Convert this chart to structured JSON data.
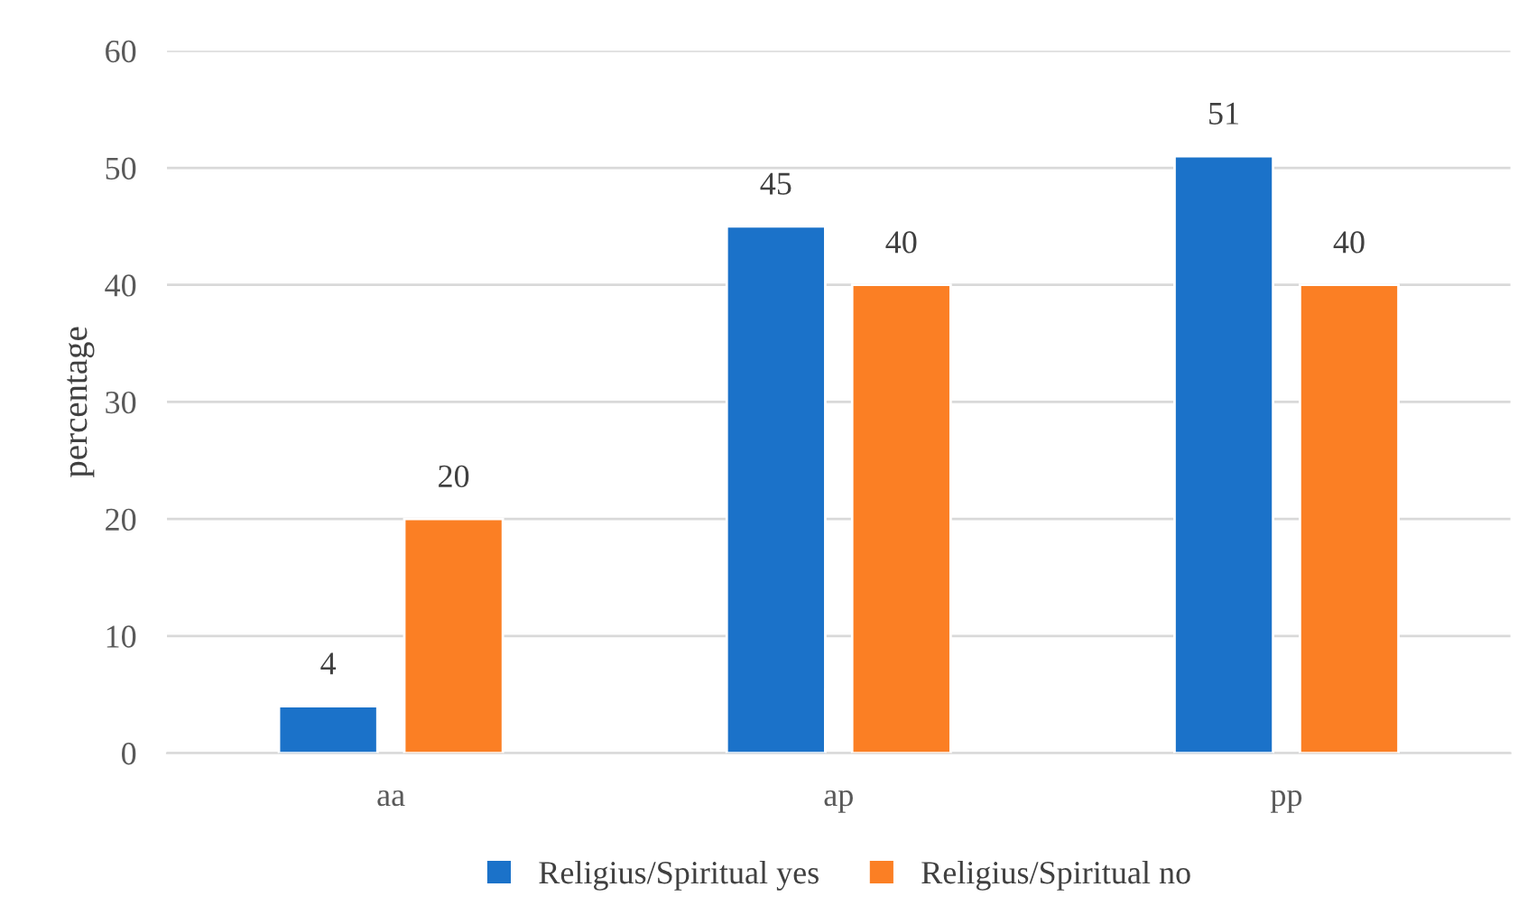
{
  "chart_data": {
    "type": "bar",
    "ylabel": "percentage",
    "categories": [
      "aa",
      "ap",
      "pp"
    ],
    "series": [
      {
        "name": "Religius/Spiritual yes",
        "color": "#1b72c9",
        "values": [
          4,
          45,
          51
        ]
      },
      {
        "name": "Religius/Spiritual no",
        "color": "#fb7f24",
        "values": [
          20,
          40,
          40
        ]
      }
    ],
    "ylim": [
      0,
      60
    ],
    "yticks": [
      0,
      10,
      20,
      30,
      40,
      50,
      60
    ],
    "grid": "y",
    "legend": "bottom",
    "data_labels": true
  }
}
